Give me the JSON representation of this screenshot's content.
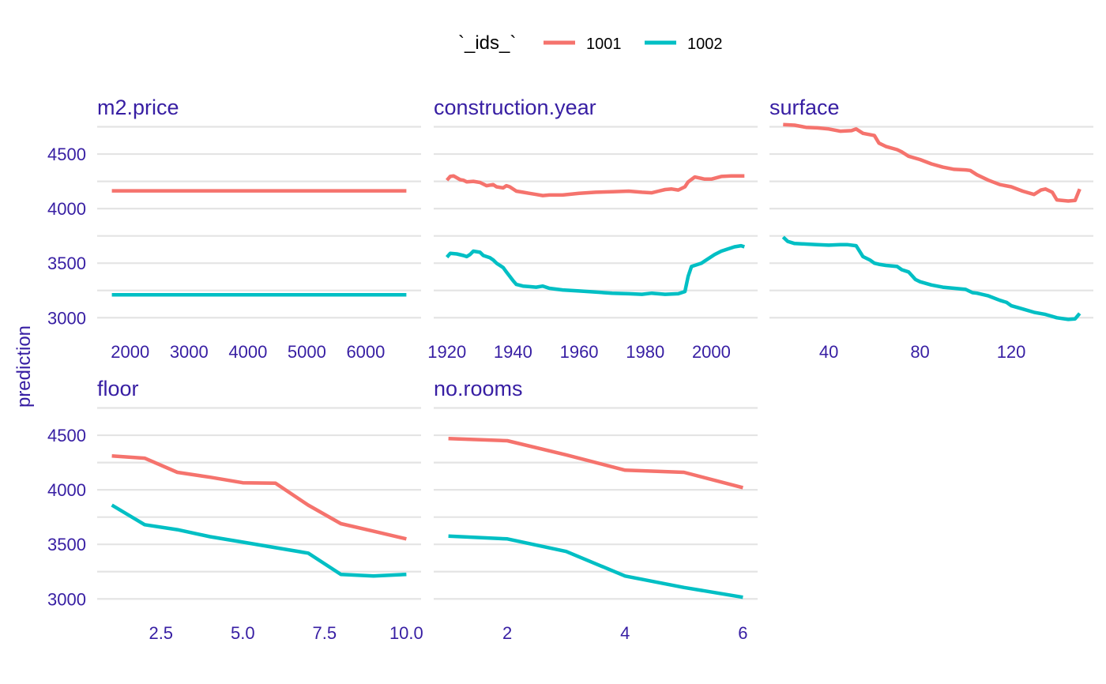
{
  "colors": {
    "1001": "#f5736d",
    "1002": "#00bfc4",
    "text": "#371ea3"
  },
  "chart_data": {
    "type": "line",
    "facets": "wrap",
    "ylabel": "prediction",
    "ylim": [
      2850,
      4790
    ],
    "yticks": [
      3000,
      3500,
      4000,
      4500
    ],
    "legend": {
      "title": "`_ids_`",
      "position": "top",
      "entries": [
        "1001",
        "1002"
      ]
    },
    "panels": [
      {
        "title": "m2.price",
        "xlim": [
          1440,
          6940
        ],
        "xticks": [
          2000,
          3000,
          4000,
          5000,
          6000
        ],
        "xtick_labels": [
          "2000",
          "3000",
          "4000",
          "5000",
          "6000"
        ],
        "series": [
          {
            "name": "1001",
            "x": [
              1690,
              6690
            ],
            "y": [
              4163,
              4163
            ]
          },
          {
            "name": "1002",
            "x": [
              1690,
              6690
            ],
            "y": [
              3210,
              3210
            ]
          }
        ]
      },
      {
        "title": "construction.year",
        "xlim": [
          1916,
          2014
        ],
        "xticks": [
          1920,
          1940,
          1960,
          1980,
          2000
        ],
        "xtick_labels": [
          "1920",
          "1940",
          "1960",
          "1980",
          "2000"
        ],
        "series": [
          {
            "name": "1001",
            "x": [
              1920,
              1921,
              1922,
              1924,
              1925,
              1926,
              1928,
              1930,
              1932,
              1934,
              1935,
              1937,
              1938,
              1939,
              1941,
              1943,
              1945,
              1947,
              1949,
              1951,
              1955,
              1960,
              1965,
              1970,
              1975,
              1979,
              1982,
              1984,
              1986,
              1988,
              1990,
              1992,
              1993,
              1995,
              1998,
              2000,
              2003,
              2006,
              2010
            ],
            "y": [
              4260,
              4295,
              4300,
              4265,
              4260,
              4245,
              4250,
              4240,
              4210,
              4220,
              4200,
              4190,
              4210,
              4200,
              4160,
              4150,
              4140,
              4130,
              4120,
              4125,
              4125,
              4140,
              4150,
              4155,
              4160,
              4150,
              4145,
              4160,
              4175,
              4180,
              4170,
              4200,
              4245,
              4290,
              4270,
              4270,
              4295,
              4300,
              4300
            ]
          },
          {
            "name": "1002",
            "x": [
              1920,
              1921,
              1923,
              1925,
              1926,
              1927,
              1928,
              1930,
              1931,
              1933,
              1934,
              1935,
              1937,
              1938,
              1939,
              1940,
              1941,
              1943,
              1945,
              1947,
              1949,
              1951,
              1955,
              1960,
              1965,
              1970,
              1975,
              1979,
              1982,
              1986,
              1990,
              1992,
              1993,
              1994,
              1995,
              1997,
              1999,
              2001,
              2003,
              2005,
              2007,
              2009,
              2010
            ],
            "y": [
              3555,
              3590,
              3585,
              3570,
              3560,
              3580,
              3610,
              3600,
              3570,
              3550,
              3530,
              3500,
              3460,
              3420,
              3380,
              3340,
              3305,
              3290,
              3285,
              3280,
              3290,
              3270,
              3255,
              3245,
              3235,
              3225,
              3220,
              3215,
              3225,
              3215,
              3220,
              3240,
              3380,
              3470,
              3480,
              3500,
              3540,
              3580,
              3610,
              3630,
              3650,
              3660,
              3650
            ]
          }
        ]
      },
      {
        "title": "surface",
        "xlim": [
          14,
          156
        ],
        "xticks": [
          40,
          80,
          120
        ],
        "xtick_labels": [
          "40",
          "80",
          "120"
        ],
        "series": [
          {
            "name": "1001",
            "x": [
              20,
              25,
              30,
              35,
              40,
              45,
              50,
              52,
              55,
              60,
              62,
              65,
              70,
              72,
              75,
              80,
              85,
              90,
              95,
              100,
              102,
              105,
              110,
              115,
              120,
              125,
              130,
              133,
              135,
              138,
              140,
              145,
              148,
              150
            ],
            "y": [
              4770,
              4765,
              4745,
              4740,
              4730,
              4710,
              4715,
              4730,
              4690,
              4670,
              4600,
              4570,
              4540,
              4520,
              4480,
              4450,
              4410,
              4380,
              4360,
              4355,
              4350,
              4310,
              4260,
              4220,
              4200,
              4160,
              4130,
              4170,
              4180,
              4150,
              4080,
              4070,
              4075,
              4180
            ]
          },
          {
            "name": "1002",
            "x": [
              20,
              22,
              25,
              30,
              35,
              40,
              45,
              48,
              52,
              55,
              58,
              60,
              62,
              65,
              70,
              72,
              75,
              78,
              80,
              85,
              90,
              95,
              100,
              103,
              105,
              110,
              115,
              118,
              120,
              125,
              130,
              135,
              140,
              145,
              148,
              150
            ],
            "y": [
              3740,
              3700,
              3680,
              3675,
              3670,
              3665,
              3670,
              3670,
              3660,
              3560,
              3530,
              3500,
              3490,
              3480,
              3470,
              3440,
              3420,
              3350,
              3330,
              3300,
              3280,
              3270,
              3260,
              3230,
              3225,
              3200,
              3160,
              3140,
              3110,
              3080,
              3050,
              3030,
              3000,
              2985,
              2990,
              3040
            ]
          }
        ]
      },
      {
        "title": "floor",
        "xlim": [
          0.55,
          10.45
        ],
        "xticks": [
          2.5,
          5.0,
          7.5,
          10.0
        ],
        "xtick_labels": [
          "2.5",
          "5.0",
          "7.5",
          "10.0"
        ],
        "series": [
          {
            "name": "1001",
            "x": [
              1,
              2,
              3,
              4,
              5,
              6,
              7,
              8,
              9,
              10
            ],
            "y": [
              4310,
              4290,
              4160,
              4115,
              4065,
              4060,
              3860,
              3690,
              3620,
              3550
            ]
          },
          {
            "name": "1002",
            "x": [
              1,
              2,
              3,
              4,
              5,
              6,
              7,
              8,
              9,
              10
            ],
            "y": [
              3860,
              3680,
              3635,
              3570,
              3520,
              3470,
              3420,
              3225,
              3210,
              3225
            ]
          }
        ]
      },
      {
        "title": "no.rooms",
        "xlim": [
          0.75,
          6.25
        ],
        "xticks": [
          2,
          4,
          6
        ],
        "xtick_labels": [
          "2",
          "4",
          "6"
        ],
        "series": [
          {
            "name": "1001",
            "x": [
              1,
              2,
              3,
              4,
              5,
              6
            ],
            "y": [
              4470,
              4450,
              4320,
              4180,
              4160,
              4020
            ]
          },
          {
            "name": "1002",
            "x": [
              1,
              2,
              3,
              4,
              5,
              6
            ],
            "y": [
              3575,
              3550,
              3435,
              3210,
              3105,
              3015
            ]
          }
        ]
      }
    ]
  }
}
